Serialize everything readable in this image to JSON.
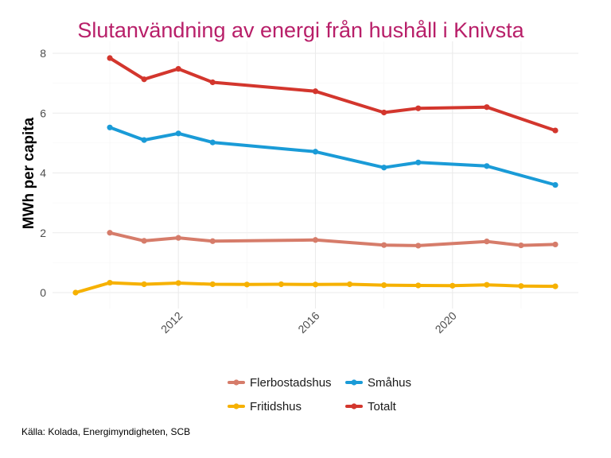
{
  "chart_data": {
    "type": "line",
    "title": "Slutanvändning av energi från hushåll i Knivsta",
    "xlabel": "",
    "ylabel": "MWh per capita",
    "xlim": [
      2009,
      2023
    ],
    "ylim": [
      0,
      8
    ],
    "x_ticks": [
      2012,
      2016,
      2020
    ],
    "y_ticks": [
      0,
      2,
      4,
      6,
      8
    ],
    "grid": true,
    "legend_position": "bottom",
    "caption": "Källa: Kolada, Energimyndigheten, SCB",
    "series": [
      {
        "name": "Flerbostadshus",
        "color": "#d67c6a",
        "points": [
          [
            2010,
            2.0
          ],
          [
            2011,
            1.73
          ],
          [
            2012,
            1.83
          ],
          [
            2013,
            1.72
          ],
          [
            2016,
            1.76
          ],
          [
            2018,
            1.59
          ],
          [
            2019,
            1.57
          ],
          [
            2021,
            1.71
          ],
          [
            2022,
            1.58
          ],
          [
            2023,
            1.61
          ]
        ]
      },
      {
        "name": "Småhus",
        "color": "#1a9bd7",
        "points": [
          [
            2010,
            5.52
          ],
          [
            2011,
            5.1
          ],
          [
            2012,
            5.32
          ],
          [
            2013,
            5.02
          ],
          [
            2016,
            4.71
          ],
          [
            2018,
            4.18
          ],
          [
            2019,
            4.35
          ],
          [
            2021,
            4.23
          ],
          [
            2023,
            3.6
          ]
        ]
      },
      {
        "name": "Fritidshus",
        "color": "#f6b100",
        "points": [
          [
            2009,
            0.0
          ],
          [
            2010,
            0.33
          ],
          [
            2011,
            0.28
          ],
          [
            2012,
            0.32
          ],
          [
            2013,
            0.28
          ],
          [
            2014,
            0.27
          ],
          [
            2015,
            0.28
          ],
          [
            2016,
            0.27
          ],
          [
            2017,
            0.28
          ],
          [
            2018,
            0.25
          ],
          [
            2019,
            0.24
          ],
          [
            2020,
            0.23
          ],
          [
            2021,
            0.26
          ],
          [
            2022,
            0.22
          ],
          [
            2023,
            0.21
          ]
        ]
      },
      {
        "name": "Totalt",
        "color": "#d3362d",
        "points": [
          [
            2010,
            7.84
          ],
          [
            2011,
            7.13
          ],
          [
            2012,
            7.48
          ],
          [
            2013,
            7.03
          ],
          [
            2016,
            6.73
          ],
          [
            2018,
            6.02
          ],
          [
            2019,
            6.16
          ],
          [
            2021,
            6.2
          ],
          [
            2023,
            5.42
          ]
        ]
      }
    ],
    "legend_order": [
      "Flerbostadshus",
      "Småhus",
      "Fritidshus",
      "Totalt"
    ]
  },
  "colors": {
    "title": "#b81f69",
    "grid_major": "#ebebeb",
    "grid_minor": "#f5f5f5"
  }
}
